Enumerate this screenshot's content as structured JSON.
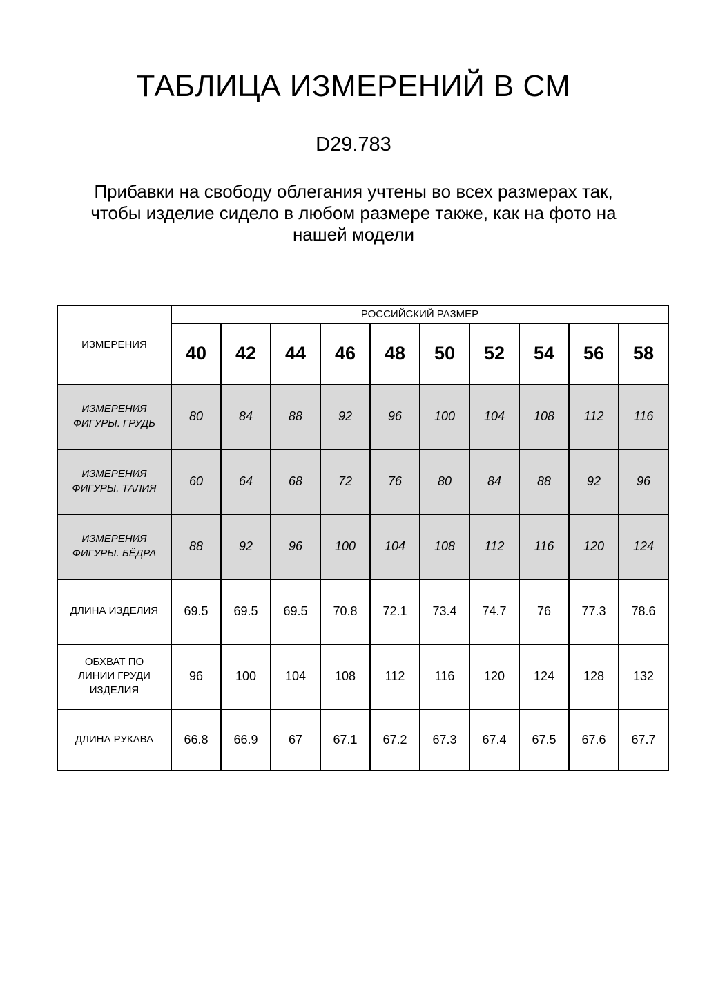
{
  "page": {
    "title": "ТАБЛИЦА ИЗМЕРЕНИЙ В СМ",
    "product_code": "D29.783",
    "note": "Прибавки на свободу облегания учтены во всех размерах так,\nчтобы изделие сидело в любом размере также, как на фото на\nнашей модели"
  },
  "table": {
    "corner_label": "ИЗМЕРЕНИЯ",
    "group_header": "РОССИЙСКИЙ РАЗМЕР",
    "sizes": [
      "40",
      "42",
      "44",
      "46",
      "48",
      "50",
      "52",
      "54",
      "56",
      "58"
    ],
    "rows": [
      {
        "label": "ИЗМЕРЕНИЯ\nФИГУРЫ. ГРУДЬ",
        "shaded": true,
        "values": [
          "80",
          "84",
          "88",
          "92",
          "96",
          "100",
          "104",
          "108",
          "112",
          "116"
        ]
      },
      {
        "label": "ИЗМЕРЕНИЯ\nФИГУРЫ. ТАЛИЯ",
        "shaded": true,
        "values": [
          "60",
          "64",
          "68",
          "72",
          "76",
          "80",
          "84",
          "88",
          "92",
          "96"
        ]
      },
      {
        "label": "ИЗМЕРЕНИЯ\nФИГУРЫ. БЁДРА",
        "shaded": true,
        "values": [
          "88",
          "92",
          "96",
          "100",
          "104",
          "108",
          "112",
          "116",
          "120",
          "124"
        ]
      },
      {
        "label": "ДЛИНА ИЗДЕЛИЯ",
        "shaded": false,
        "values": [
          "69.5",
          "69.5",
          "69.5",
          "70.8",
          "72.1",
          "73.4",
          "74.7",
          "76",
          "77.3",
          "78.6"
        ]
      },
      {
        "label": "ОБХВАТ ПО\nЛИНИИ ГРУДИ\nИЗДЕЛИЯ",
        "shaded": false,
        "values": [
          "96",
          "100",
          "104",
          "108",
          "112",
          "116",
          "120",
          "124",
          "128",
          "132"
        ]
      },
      {
        "label": "ДЛИНА РУКАВА",
        "shaded": false,
        "values": [
          "66.8",
          "66.9",
          "67",
          "67.1",
          "67.2",
          "67.3",
          "67.4",
          "67.5",
          "67.6",
          "67.7"
        ]
      }
    ],
    "shaded_row_color": "#d9d9d9",
    "border_color": "#000000",
    "text_color": "#000000"
  }
}
